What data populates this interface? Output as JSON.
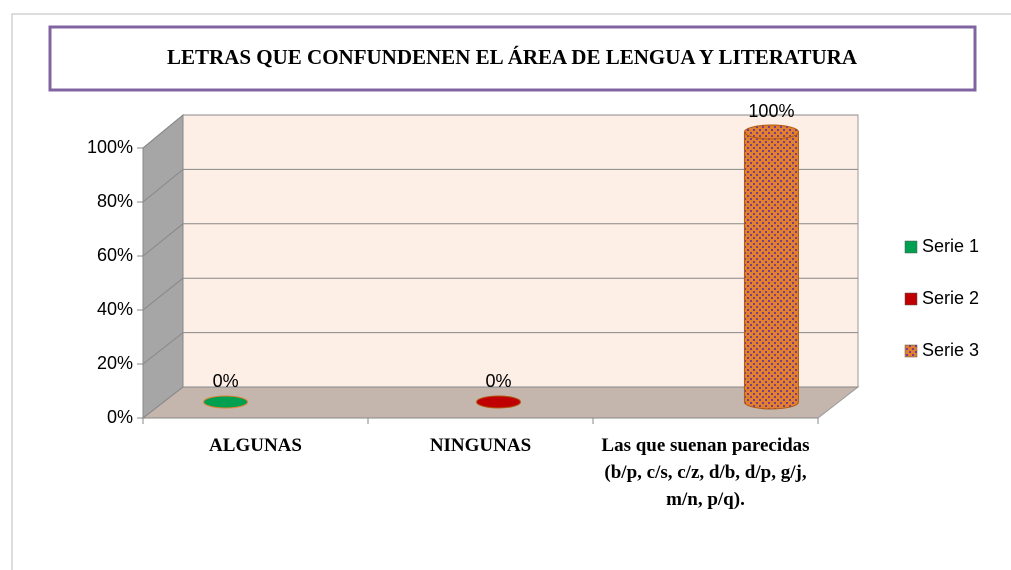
{
  "chart_data": {
    "type": "bar3d",
    "title": "LETRAS QUE CONFUNDENEN EL ÁREA DE LENGUA Y LITERATURA",
    "categories": [
      "ALGUNAS",
      "NINGUNAS",
      "Las que suenan parecidas (b/p, c/s, c/z, d/b, d/p, g/j, m/n, p/q)."
    ],
    "series": [
      {
        "name": "Serie 1",
        "color": "#00a050",
        "values": [
          0,
          null,
          null
        ],
        "value_labels": [
          "0%",
          null,
          null
        ]
      },
      {
        "name": "Serie 2",
        "color": "#c00000",
        "values": [
          null,
          0,
          null
        ],
        "value_labels": [
          null,
          "0%",
          null
        ]
      },
      {
        "name": "Serie 3",
        "color": "#e3802d",
        "values": [
          null,
          null,
          100
        ],
        "value_labels": [
          null,
          null,
          "100%"
        ]
      }
    ],
    "ylim": [
      0,
      100
    ],
    "yticks": [
      {
        "value": 0,
        "label": "0%"
      },
      {
        "value": 20,
        "label": "20%"
      },
      {
        "value": 40,
        "label": "40%"
      },
      {
        "value": 60,
        "label": "60%"
      },
      {
        "value": 80,
        "label": "80%"
      },
      {
        "value": 100,
        "label": "100%"
      }
    ],
    "grid": true,
    "legend": "right"
  }
}
